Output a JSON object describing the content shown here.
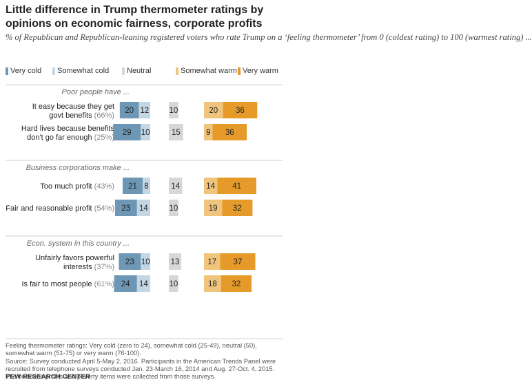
{
  "title": "Little difference in Trump thermometer ratings by opinions on economic fairness, corporate profits",
  "subtitle": "% of Republican and Republican-leaning registered voters who rate Trump on a ‘feeling thermometer’ from 0 (coldest rating) to 100 (warmest rating) ...",
  "legend": [
    {
      "label": "Very cold",
      "color": "#6d97b5"
    },
    {
      "label": "Somewhat cold",
      "color": "#c3d6e4"
    },
    {
      "label": "Neutral",
      "color": "#d7d7d7"
    },
    {
      "label": "Somewhat warm",
      "color": "#efc47c"
    },
    {
      "label": "Very warm",
      "color": "#e59a2a"
    }
  ],
  "chart_data": {
    "type": "bar",
    "stacked": "diverging",
    "series": [
      "Very cold",
      "Somewhat cold",
      "Neutral",
      "Somewhat warm",
      "Very warm"
    ],
    "colors": {
      "Very cold": "#6d97b5",
      "Somewhat cold": "#c3d6e4",
      "Neutral": "#d7d7d7",
      "Somewhat warm": "#efc47c",
      "Very warm": "#e59a2a"
    },
    "groups": [
      {
        "heading": "Poor people have ...",
        "rows": [
          {
            "label": [
              "It easy because they get",
              "govt benefits"
            ],
            "pct": "(66%)",
            "very_cold": 20,
            "somewhat_cold": 12,
            "neutral": 10,
            "somewhat_warm": 20,
            "very_warm": 36
          },
          {
            "label": [
              "Hard lives because benefits",
              "don't go far enough"
            ],
            "pct": "(25%)",
            "very_cold": 29,
            "somewhat_cold": 10,
            "neutral": 15,
            "somewhat_warm": 9,
            "very_warm": 36
          }
        ]
      },
      {
        "heading": "Business corporations make ...",
        "rows": [
          {
            "label": [
              "Too much profit"
            ],
            "pct": "(43%)",
            "very_cold": 21,
            "somewhat_cold": 8,
            "neutral": 14,
            "somewhat_warm": 14,
            "very_warm": 41
          },
          {
            "label": [
              "Fair and reasonable profit"
            ],
            "pct": "(54%)",
            "very_cold": 23,
            "somewhat_cold": 14,
            "neutral": 10,
            "somewhat_warm": 19,
            "very_warm": 32
          }
        ]
      },
      {
        "heading": "Econ. system in this country ...",
        "rows": [
          {
            "label": [
              "Unfairly favors powerful",
              "interests"
            ],
            "pct": "(37%)",
            "very_cold": 23,
            "somewhat_cold": 10,
            "neutral": 13,
            "somewhat_warm": 17,
            "very_warm": 37
          },
          {
            "label": [
              "Is fair to most people"
            ],
            "pct": "(61%)",
            "very_cold": 24,
            "somewhat_cold": 14,
            "neutral": 10,
            "somewhat_warm": 18,
            "very_warm": 32
          }
        ]
      }
    ]
  },
  "notes": [
    "Feeling thermometer ratings: Very cold (zero to 24), somewhat cold (25-49), neutral (50), somewhat warm (51-75) or very warm (76-100).",
    "Source: Survey conducted April 5-May 2, 2016. Participants in the American Trends Panel were recruited from telephone surveys conducted Jan. 23-March 16, 2014 and Aug. 27-Oct. 4, 2015. The business profits and poverty items were collected from those surveys."
  ],
  "source_org": "PEW RESEARCH CENTER"
}
